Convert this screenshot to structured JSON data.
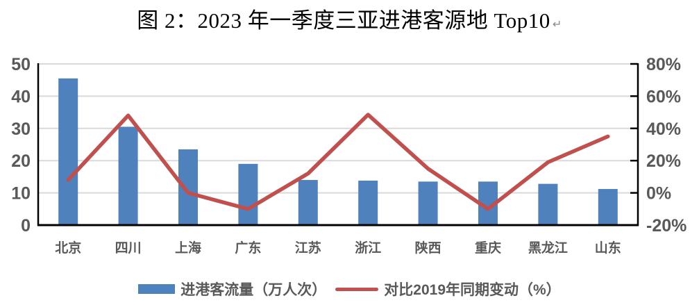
{
  "title": {
    "text": "图 2：2023 年一季度三亚进港客源地 Top10",
    "end_mark": "↵"
  },
  "colors": {
    "bar": "#4F81BD",
    "line": "#C0504D",
    "axis_text": "#595959",
    "gridline": "#D9D9D9",
    "axis_line": "#000000",
    "background": "#FFFFFF"
  },
  "legend": {
    "bar_label": "进港客流量（万人次）",
    "line_label": "对比2019年同期变动（%）"
  },
  "chart_data": {
    "type": "combo",
    "title": "图 2：2023 年一季度三亚进港客源地 Top10",
    "categories": [
      "北京",
      "四川",
      "上海",
      "广东",
      "江苏",
      "浙江",
      "陕西",
      "重庆",
      "黑龙江",
      "山东"
    ],
    "series": [
      {
        "name": "进港客流量（万人次）",
        "type": "bar",
        "axis": "left",
        "values": [
          45.5,
          30.5,
          23.5,
          19,
          14,
          13.8,
          13.5,
          13.5,
          12.8,
          11.2
        ]
      },
      {
        "name": "对比2019年同期变动（%）",
        "type": "line",
        "axis": "right",
        "values": [
          8,
          48,
          0,
          -10,
          12,
          48.5,
          15,
          -10,
          19,
          35
        ]
      }
    ],
    "left_axis": {
      "min": 0,
      "max": 50,
      "ticks": [
        0,
        10,
        20,
        30,
        40,
        50
      ],
      "suffix": ""
    },
    "right_axis": {
      "min": -20,
      "max": 80,
      "ticks": [
        -20,
        0,
        20,
        40,
        60,
        80
      ],
      "suffix": "%"
    },
    "grid": true,
    "legend_position": "bottom"
  }
}
